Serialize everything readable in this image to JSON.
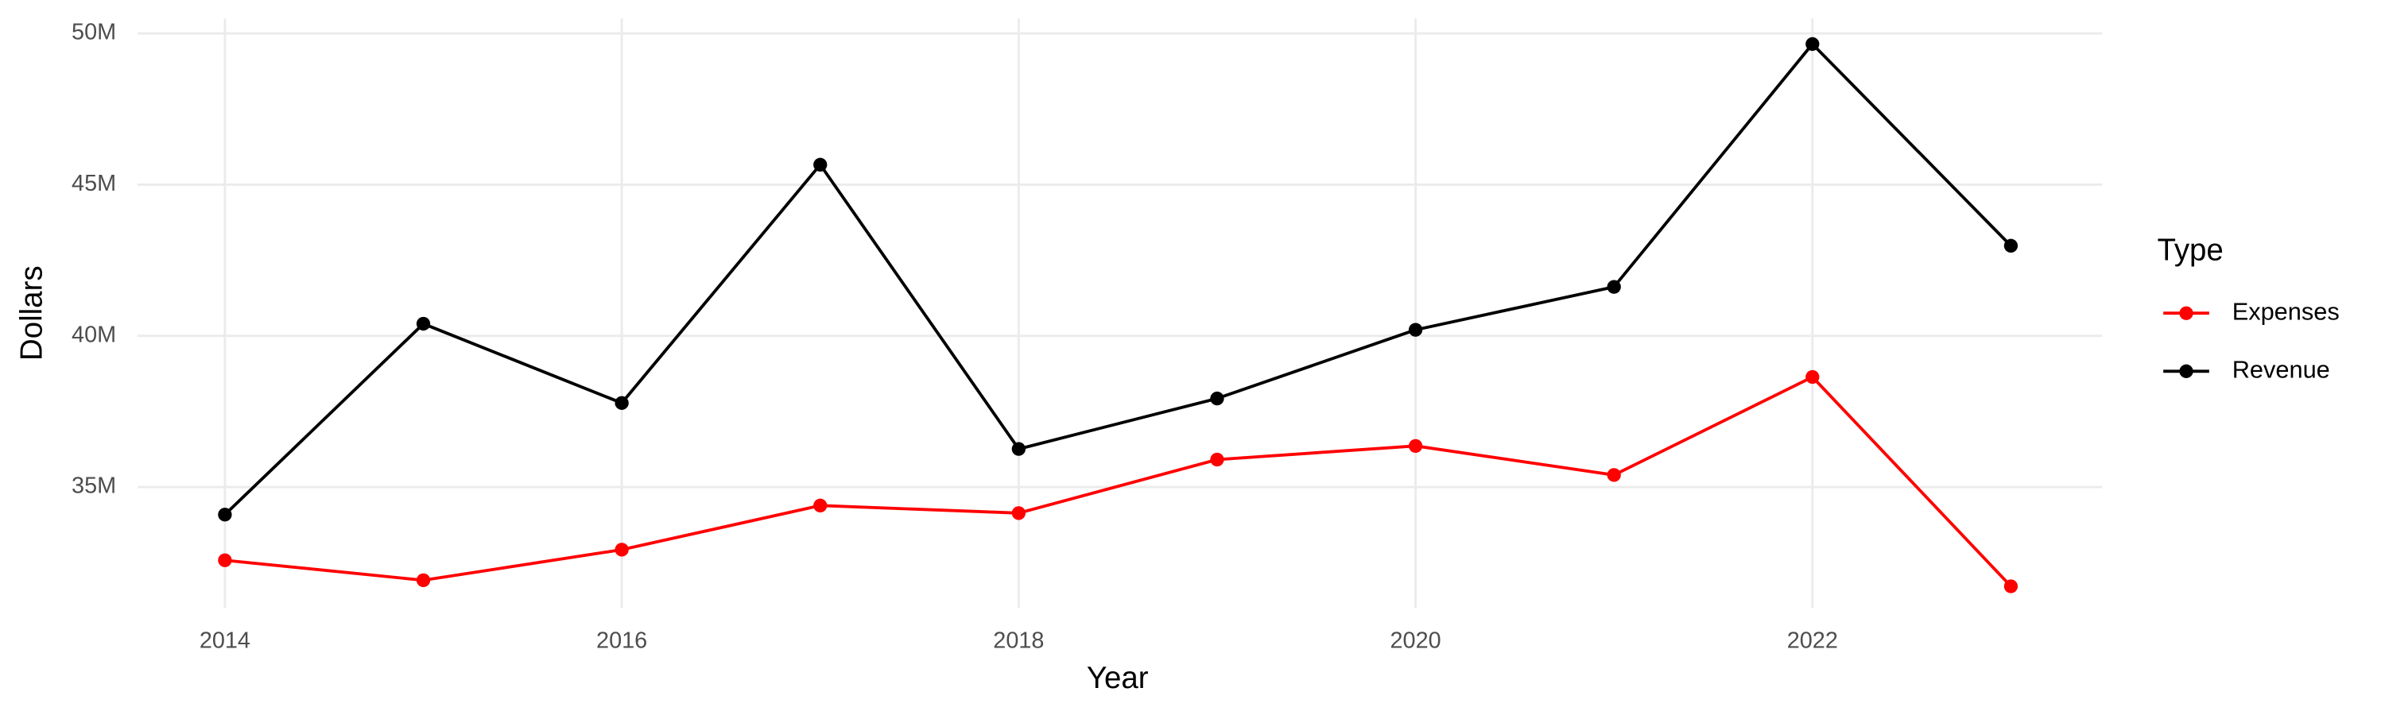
{
  "chart_data": {
    "type": "line",
    "x_label": "Year",
    "y_label": "Dollars",
    "legend_title": "Type",
    "legend": "right",
    "grid": true,
    "x": [
      2014,
      2015,
      2016,
      2017,
      2018,
      2019,
      2020,
      2021,
      2022,
      2023
    ],
    "series": [
      {
        "name": "Expenses",
        "color": "#ff0000",
        "values": [
          32580000,
          31920000,
          32930000,
          34390000,
          34140000,
          35910000,
          36360000,
          35400000,
          38640000,
          31720000
        ]
      },
      {
        "name": "Revenue",
        "color": "#000000",
        "values": [
          34090000,
          40400000,
          37780000,
          45660000,
          36260000,
          37930000,
          40200000,
          41620000,
          49650000,
          42980000
        ]
      }
    ],
    "xlim": [
      2013.56,
      2023.46
    ],
    "xticks": [
      2014,
      2016,
      2018,
      2020,
      2022
    ],
    "ylim": [
      31000000,
      50500000
    ],
    "yticks": [
      {
        "value": 35000000,
        "label": "35M"
      },
      {
        "value": 40000000,
        "label": "40M"
      },
      {
        "value": 45000000,
        "label": "45M"
      },
      {
        "value": 50000000,
        "label": "50M"
      }
    ]
  }
}
